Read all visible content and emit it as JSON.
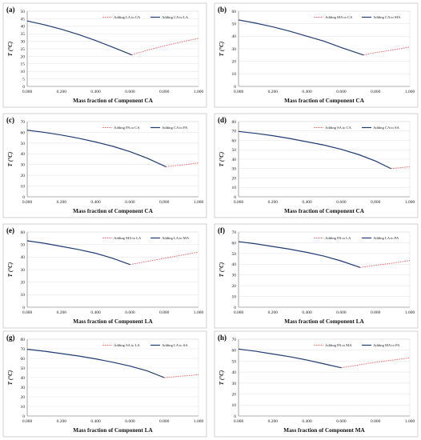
{
  "chart_data": [
    {
      "panel_label": "(a)",
      "type": "line",
      "xlabel": "Mass fraction of Component CA",
      "ylabel": "T (°C)",
      "xlim": [
        0,
        1
      ],
      "ylim": [
        0,
        50
      ],
      "ytick_step": 5,
      "xticks": [
        "0.000",
        "0.200",
        "0.400",
        "0.600",
        "0.800",
        "1.000"
      ],
      "legend_placement": "top-right",
      "series": [
        {
          "name": "Adding LA to CA",
          "style": "dashed",
          "color": "#e8626b",
          "x": [
            0.61,
            0.7,
            0.8,
            0.9,
            1.0
          ],
          "y": [
            21,
            24,
            27,
            29.5,
            32
          ]
        },
        {
          "name": "Adding CA to LA",
          "style": "solid",
          "color": "#1f3b73",
          "x": [
            0.0,
            0.1,
            0.2,
            0.3,
            0.4,
            0.5,
            0.61
          ],
          "y": [
            43.5,
            41,
            38,
            34.5,
            30.5,
            26,
            21
          ]
        }
      ]
    },
    {
      "panel_label": "(b)",
      "type": "line",
      "xlabel": "Mass fraction of Component CA",
      "ylabel": "T (°C)",
      "xlim": [
        0,
        1
      ],
      "ylim": [
        0,
        60
      ],
      "ytick_step": 10,
      "xticks": [
        "0.000",
        "0.200",
        "0.400",
        "0.600",
        "0.800",
        "1.000"
      ],
      "legend_placement": "top-right",
      "series": [
        {
          "name": "Adding MA to CA",
          "style": "dashed",
          "color": "#e8626b",
          "x": [
            0.73,
            0.8,
            0.9,
            1.0
          ],
          "y": [
            25,
            27,
            29,
            31.5
          ]
        },
        {
          "name": "Adding CA to MA",
          "style": "solid",
          "color": "#1f3b73",
          "x": [
            0.0,
            0.1,
            0.2,
            0.3,
            0.4,
            0.5,
            0.6,
            0.73
          ],
          "y": [
            53,
            50.5,
            47.5,
            44,
            40,
            36,
            31,
            25
          ]
        }
      ]
    },
    {
      "panel_label": "(c)",
      "type": "line",
      "xlabel": "Mass fraction of Component CA",
      "ylabel": "T (°C)",
      "xlim": [
        0,
        1
      ],
      "ylim": [
        0,
        70
      ],
      "ytick_step": 10,
      "xticks": [
        "0.000",
        "0.200",
        "0.400",
        "0.600",
        "0.800",
        "1.000"
      ],
      "legend_placement": "top-right",
      "series": [
        {
          "name": "Adding PA to CA",
          "style": "dashed",
          "color": "#e8626b",
          "x": [
            0.81,
            0.9,
            1.0
          ],
          "y": [
            28,
            29.5,
            31.5
          ]
        },
        {
          "name": "Adding CA to PA",
          "style": "solid",
          "color": "#1f3b73",
          "x": [
            0.0,
            0.1,
            0.2,
            0.3,
            0.4,
            0.5,
            0.6,
            0.7,
            0.81
          ],
          "y": [
            62,
            60,
            57.5,
            54.5,
            51,
            47,
            42,
            36,
            28
          ]
        }
      ]
    },
    {
      "panel_label": "(d)",
      "type": "line",
      "xlabel": "Mass fraction of Component CA",
      "ylabel": "T (°C)",
      "xlim": [
        0,
        1
      ],
      "ylim": [
        0,
        80
      ],
      "ytick_step": 10,
      "xticks": [
        "0.000",
        "0.200",
        "0.400",
        "0.600",
        "0.800",
        "1.000"
      ],
      "legend_placement": "top-right",
      "series": [
        {
          "name": "Adding SA to CA",
          "style": "dashed",
          "color": "#e8626b",
          "x": [
            0.89,
            0.95,
            1.0
          ],
          "y": [
            30,
            31,
            32
          ]
        },
        {
          "name": "Adding CA to SA",
          "style": "solid",
          "color": "#1f3b73",
          "x": [
            0.0,
            0.1,
            0.2,
            0.3,
            0.4,
            0.5,
            0.6,
            0.7,
            0.8,
            0.89
          ],
          "y": [
            69.5,
            67.5,
            65,
            62,
            58.5,
            55,
            50.5,
            45,
            38,
            30
          ]
        }
      ]
    },
    {
      "panel_label": "(e)",
      "type": "line",
      "xlabel": "Mass fraction of Component LA",
      "ylabel": "T (°C)",
      "xlim": [
        0,
        1
      ],
      "ylim": [
        0,
        60
      ],
      "ytick_step": 10,
      "xticks": [
        "0.000",
        "0.200",
        "0.400",
        "0.600",
        "0.800",
        "1.000"
      ],
      "legend_placement": "top-right",
      "series": [
        {
          "name": "Adding MA to LA",
          "style": "dashed",
          "color": "#e8626b",
          "x": [
            0.6,
            0.7,
            0.8,
            0.9,
            1.0
          ],
          "y": [
            34,
            36.5,
            39,
            41.5,
            44
          ]
        },
        {
          "name": "Adding LA to MA",
          "style": "solid",
          "color": "#1f3b73",
          "x": [
            0.0,
            0.1,
            0.2,
            0.3,
            0.4,
            0.5,
            0.6
          ],
          "y": [
            53,
            51,
            48.5,
            46,
            43,
            39,
            34
          ]
        }
      ]
    },
    {
      "panel_label": "(f)",
      "type": "line",
      "xlabel": "Mass fraction of Component LA",
      "ylabel": "T (°C)",
      "xlim": [
        0,
        1
      ],
      "ylim": [
        0,
        70
      ],
      "ytick_step": 10,
      "xticks": [
        "0.000",
        "0.200",
        "0.400",
        "0.600",
        "0.800",
        "1.000"
      ],
      "legend_placement": "top-right",
      "series": [
        {
          "name": "Adding PA to LA",
          "style": "dashed",
          "color": "#e8626b",
          "x": [
            0.71,
            0.8,
            0.9,
            1.0
          ],
          "y": [
            37,
            39,
            41,
            43.5
          ]
        },
        {
          "name": "Adding LA to PA",
          "style": "solid",
          "color": "#1f3b73",
          "x": [
            0.0,
            0.1,
            0.2,
            0.3,
            0.4,
            0.5,
            0.6,
            0.71
          ],
          "y": [
            61,
            59,
            56.5,
            54,
            51,
            47.5,
            43,
            37
          ]
        }
      ]
    },
    {
      "panel_label": "(g)",
      "type": "line",
      "xlabel": "Mass fraction of Component LA",
      "ylabel": "T (°C)",
      "xlim": [
        0,
        1
      ],
      "ylim": [
        0,
        80
      ],
      "ytick_step": 10,
      "xticks": [
        "0.000",
        "0.200",
        "0.400",
        "0.600",
        "0.800",
        "1.000"
      ],
      "legend_placement": "top-right",
      "series": [
        {
          "name": "Adding SA to LA",
          "style": "dashed",
          "color": "#e8626b",
          "x": [
            0.8,
            0.9,
            1.0
          ],
          "y": [
            40,
            41.5,
            43
          ]
        },
        {
          "name": "Adding LA to SA",
          "style": "solid",
          "color": "#1f3b73",
          "x": [
            0.0,
            0.1,
            0.2,
            0.3,
            0.4,
            0.5,
            0.6,
            0.7,
            0.8
          ],
          "y": [
            69.5,
            67.5,
            65,
            62.5,
            59.5,
            56,
            52,
            47,
            40
          ]
        }
      ]
    },
    {
      "panel_label": "(h)",
      "type": "line",
      "xlabel": "Mass fraction of Component MA",
      "ylabel": "T (°C)",
      "xlim": [
        0,
        1
      ],
      "ylim": [
        0,
        70
      ],
      "ytick_step": 10,
      "xticks": [
        "0.000",
        "0.200",
        "0.400",
        "0.600",
        "0.800",
        "1.000"
      ],
      "legend_placement": "top-right",
      "series": [
        {
          "name": "Adding PA to MA",
          "style": "dashed",
          "color": "#e8626b",
          "x": [
            0.6,
            0.7,
            0.8,
            0.9,
            1.0
          ],
          "y": [
            44,
            46.5,
            49,
            51,
            53
          ]
        },
        {
          "name": "Adding MA to PA",
          "style": "solid",
          "color": "#1f3b73",
          "x": [
            0.0,
            0.1,
            0.2,
            0.3,
            0.4,
            0.5,
            0.6
          ],
          "y": [
            61,
            59,
            56.5,
            54,
            51,
            47.5,
            44
          ]
        }
      ]
    }
  ]
}
